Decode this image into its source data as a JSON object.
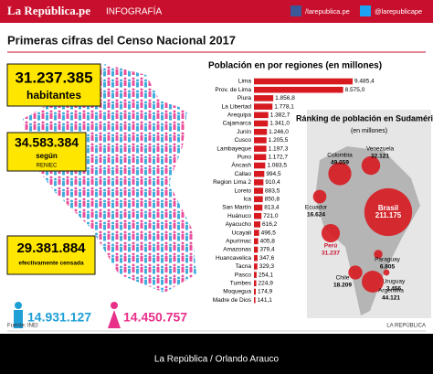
{
  "header": {
    "logo": "La República.pe",
    "section": "INFOGRAFÍA",
    "facebook": "/larepublica.pe",
    "twitter": "@larepublicape"
  },
  "title": "Primeras cifras del Censo Nacional 2017",
  "stats": [
    {
      "number": "31.237.385",
      "label": "habitantes"
    },
    {
      "number": "34.583.384",
      "label": "según",
      "note": "RENIEC"
    },
    {
      "number": "29.381.884",
      "label": "efectivamente censada"
    }
  ],
  "gender": {
    "men": "14.931.127",
    "women": "14.450.757"
  },
  "chart_data": {
    "type": "bar",
    "orientation": "horizontal",
    "title": "Población en por regiones (en millones)",
    "color": "#d71920",
    "categories": [
      "Lima",
      "Prov. de Lima",
      "Piura",
      "La Libertad",
      "Arequipa",
      "Cajamarca",
      "Junín",
      "Cusco",
      "Lambayeque",
      "Puno",
      "Áncash",
      "Callao",
      "Region Lima 2",
      "Loreto",
      "Ica",
      "San Martín",
      "Huánuco",
      "Ayacucho",
      "Ucayali",
      "Apurímac",
      "Amazonas",
      "Huancavelica",
      "Tacna",
      "Pasco",
      "Tumbes",
      "Moquegua",
      "Madre de Dios"
    ],
    "values": [
      9485.4,
      8575.0,
      1856.8,
      1778.1,
      1382.7,
      1341.0,
      1246.0,
      1205.5,
      1197.3,
      1172.7,
      1083.5,
      994.5,
      910.4,
      883.5,
      850.8,
      813.4,
      721.0,
      616.2,
      496.5,
      405.8,
      379.4,
      347.6,
      329.3,
      254.1,
      224.9,
      174.9,
      141.1
    ],
    "value_labels": [
      "9.485,4",
      "8.575,0",
      "1.856,8",
      "1.778,1",
      "1.382,7",
      "1.341,0",
      "1.246,0",
      "1.205,5",
      "1.197,3",
      "1.172,7",
      "1.083,5",
      "994,5",
      "910,4",
      "883,5",
      "850,8",
      "813,4",
      "721,0",
      "616,2",
      "496,5",
      "405,8",
      "379,4",
      "347,6",
      "329,3",
      "254,1",
      "224,9",
      "174,9",
      "141,1"
    ]
  },
  "map": {
    "title": "Ránking de población en Sudamérica",
    "subtitle": "(en millones)",
    "countries": [
      {
        "name": "Colombia",
        "value": 49.059
      },
      {
        "name": "Venezuela",
        "value": 32.121
      },
      {
        "name": "Ecuador",
        "value": 16.624
      },
      {
        "name": "Perú",
        "value": 31.237
      },
      {
        "name": "Brasil",
        "value": 211.175
      },
      {
        "name": "Paraguay",
        "value": 6.805
      },
      {
        "name": "Uruguay",
        "value": 3.456
      },
      {
        "name": "Chile",
        "value": 18.209
      },
      {
        "name": "Argentina",
        "value": 44.121
      }
    ]
  },
  "footer": {
    "source": "Fuente: INEI",
    "brand": "LA REPÚBLICA",
    "credit": "La República / Orlando Arauco"
  }
}
